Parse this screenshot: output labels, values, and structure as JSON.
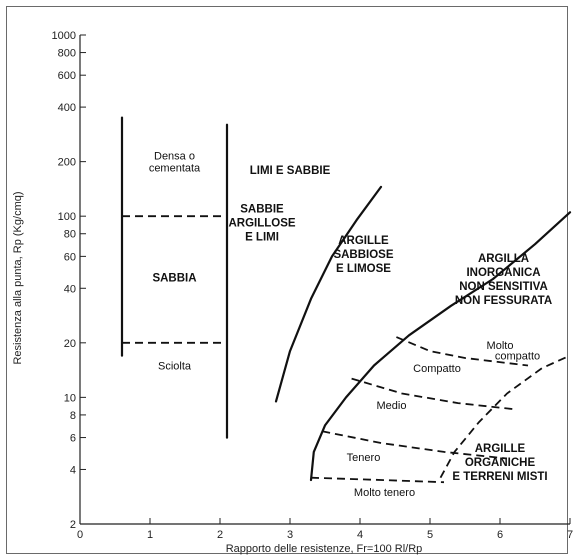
{
  "chart_data": {
    "type": "line",
    "xlabel": "Rapporto delle resistenze, Fr=100 Rl/Rp",
    "ylabel": "Resistenza alla punta, Rp (Kg/cmq)",
    "xlim": [
      0,
      7
    ],
    "ylim": [
      2,
      1000
    ],
    "y_scale": "log",
    "grid": false,
    "x_ticks": [
      "0",
      "1",
      "2",
      "3",
      "4",
      "5",
      "6",
      "7"
    ],
    "y_ticks": [
      {
        "v": 2,
        "label": "2"
      },
      {
        "v": 4,
        "label": "4"
      },
      {
        "v": 6,
        "label": "6"
      },
      {
        "v": 8,
        "label": "8"
      },
      {
        "v": 10,
        "label": "10"
      },
      {
        "v": 20,
        "label": "20"
      },
      {
        "v": 40,
        "label": "40"
      },
      {
        "v": 60,
        "label": "60"
      },
      {
        "v": 80,
        "label": "80"
      },
      {
        "v": 100,
        "label": "100"
      },
      {
        "v": 200,
        "label": "200"
      },
      {
        "v": 400,
        "label": "400"
      },
      {
        "v": 600,
        "label": "600"
      },
      {
        "v": 800,
        "label": "800"
      },
      {
        "v": 1000,
        "label": "1000"
      }
    ],
    "solid_lines": [
      {
        "points": [
          [
            0.6,
            17
          ],
          [
            0.6,
            350
          ]
        ]
      },
      {
        "points": [
          [
            2.1,
            6
          ],
          [
            2.1,
            320
          ]
        ]
      },
      {
        "points": [
          [
            2.8,
            9.5
          ],
          [
            3.0,
            18
          ],
          [
            3.3,
            35
          ],
          [
            3.6,
            60
          ],
          [
            3.95,
            95
          ],
          [
            4.3,
            145
          ]
        ]
      },
      {
        "points": [
          [
            3.3,
            3.5
          ],
          [
            3.34,
            5
          ],
          [
            3.5,
            7
          ],
          [
            3.8,
            10
          ],
          [
            4.2,
            15
          ],
          [
            4.7,
            22
          ],
          [
            5.3,
            32
          ],
          [
            5.9,
            45
          ],
          [
            6.5,
            70
          ],
          [
            7.0,
            105
          ]
        ]
      }
    ],
    "dashed_lines": [
      {
        "points": [
          [
            0.6,
            100
          ],
          [
            2.1,
            100
          ]
        ]
      },
      {
        "points": [
          [
            0.6,
            20
          ],
          [
            2.1,
            20
          ]
        ]
      },
      {
        "points": [
          [
            4.52,
            21.5
          ],
          [
            5.0,
            18
          ],
          [
            5.5,
            16.5
          ],
          [
            6.4,
            15
          ]
        ]
      },
      {
        "points": [
          [
            3.88,
            12.7
          ],
          [
            4.6,
            10.5
          ],
          [
            5.4,
            9.3
          ],
          [
            6.2,
            8.6
          ]
        ]
      },
      {
        "points": [
          [
            3.46,
            6.5
          ],
          [
            4.3,
            5.6
          ],
          [
            5.2,
            5.0
          ],
          [
            6.1,
            4.6
          ]
        ]
      },
      {
        "points": [
          [
            3.3,
            3.6
          ],
          [
            4.3,
            3.5
          ],
          [
            5.2,
            3.4
          ]
        ]
      },
      {
        "points": [
          [
            5.15,
            3.6
          ],
          [
            5.35,
            5.0
          ],
          [
            5.7,
            7.3
          ],
          [
            6.1,
            10.5
          ],
          [
            6.6,
            14.5
          ],
          [
            7.0,
            17
          ]
        ]
      }
    ],
    "region_labels": [
      {
        "lines": [
          "Densa o",
          "cementata"
        ],
        "x": 1.35,
        "y": 200,
        "bold": false
      },
      {
        "lines": [
          "SABBIA"
        ],
        "x": 1.35,
        "y": 46,
        "bold": true
      },
      {
        "lines": [
          "Sciolta"
        ],
        "x": 1.35,
        "y": 15,
        "bold": false
      },
      {
        "lines": [
          "LIMI E SABBIE"
        ],
        "x": 3.0,
        "y": 180,
        "bold": true
      },
      {
        "lines": [
          "SABBIE",
          "ARGILLOSE",
          "E LIMI"
        ],
        "x": 2.6,
        "y": 92,
        "bold": true
      },
      {
        "lines": [
          "ARGILLE",
          "SABBIOSE",
          "E LIMOSE"
        ],
        "x": 4.05,
        "y": 62,
        "bold": true
      },
      {
        "lines": [
          "ARGILLA",
          "INORGANICA",
          "NON SENSITIVA",
          "NON FESSURATA"
        ],
        "x": 6.05,
        "y": 45,
        "bold": true
      },
      {
        "lines": [
          "Molto"
        ],
        "x": 6.0,
        "y": 19.5,
        "bold": false
      },
      {
        "lines": [
          "compatto"
        ],
        "x": 6.25,
        "y": 17,
        "bold": false
      },
      {
        "lines": [
          "Compatto"
        ],
        "x": 5.1,
        "y": 14.5,
        "bold": false
      },
      {
        "lines": [
          "Medio"
        ],
        "x": 4.45,
        "y": 9.1,
        "bold": false
      },
      {
        "lines": [
          "Tenero"
        ],
        "x": 4.05,
        "y": 4.7,
        "bold": false
      },
      {
        "lines": [
          "ARGILLE",
          "ORGANICHE",
          "E TERRENI MISTI"
        ],
        "x": 6.0,
        "y": 4.4,
        "bold": true
      },
      {
        "lines": [
          "Molto tenero"
        ],
        "x": 4.35,
        "y": 3.0,
        "bold": false
      }
    ]
  }
}
